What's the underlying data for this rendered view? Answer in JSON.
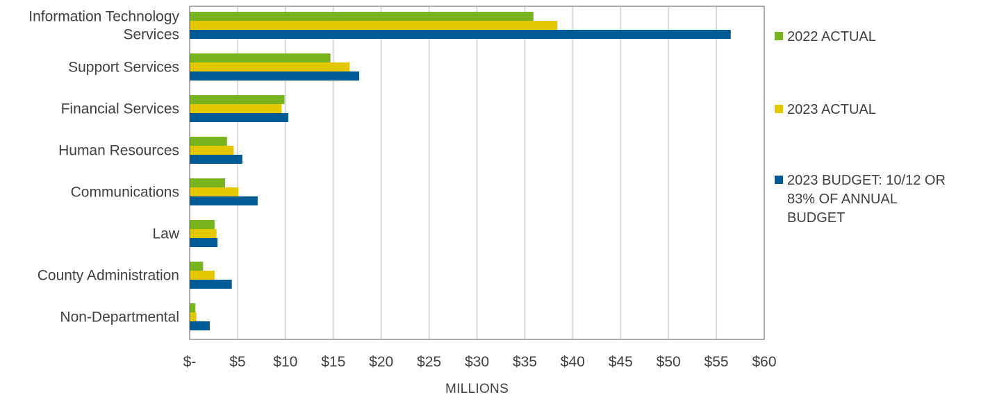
{
  "chart_data": {
    "type": "bar",
    "orientation": "horizontal",
    "title": "",
    "xlabel": "MILLIONS",
    "ylabel": "",
    "xlim": [
      0,
      60
    ],
    "x_ticks": [
      0,
      5,
      10,
      15,
      20,
      25,
      30,
      35,
      40,
      45,
      50,
      55,
      60
    ],
    "x_tick_labels": [
      "$-",
      "$5",
      "$10",
      "$15",
      "$20",
      "$25",
      "$30",
      "$35",
      "$40",
      "$45",
      "$50",
      "$55",
      "$60"
    ],
    "grid": true,
    "legend_position": "right",
    "categories": [
      [
        "Information Technology",
        "Services"
      ],
      [
        "Support Services"
      ],
      [
        "Financial Services"
      ],
      [
        "Human Resources"
      ],
      [
        "Communications"
      ],
      [
        "Law"
      ],
      [
        "County Administration"
      ],
      [
        "Non-Departmental"
      ]
    ],
    "series": [
      {
        "name": "2022 ACTUAL",
        "legend_lines": [
          "2022 ACTUAL"
        ],
        "color": "#78B41E",
        "values": [
          35.9,
          14.7,
          9.9,
          3.9,
          3.7,
          2.6,
          1.4,
          0.6
        ]
      },
      {
        "name": "2023 ACTUAL",
        "legend_lines": [
          "2023 ACTUAL"
        ],
        "color": "#E3C700",
        "values": [
          38.4,
          16.7,
          9.6,
          4.6,
          5.1,
          2.8,
          2.6,
          0.7
        ]
      },
      {
        "name": "2023 BUDGET: 10/12 OR 83% OF ANNUAL BUDGET",
        "legend_lines": [
          "2023 BUDGET: 10/12 OR",
          "83% OF ANNUAL",
          "BUDGET"
        ],
        "color": "#005A96",
        "values": [
          56.5,
          17.7,
          10.3,
          5.5,
          7.1,
          2.9,
          4.4,
          2.1
        ]
      }
    ]
  }
}
